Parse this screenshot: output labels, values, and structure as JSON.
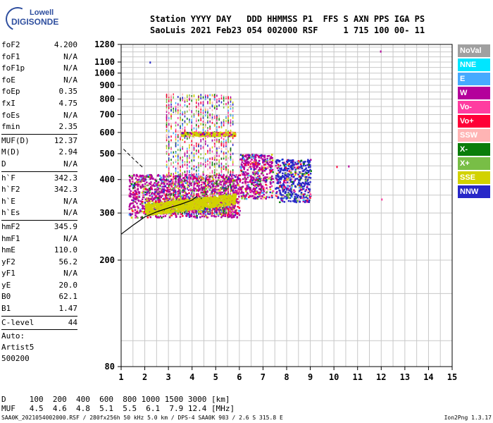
{
  "logo": {
    "brand_top": "Lowell",
    "brand_bottom": "DIGISONDE"
  },
  "header": {
    "line1": "Station YYYY DAY   DDD HHMMSS P1  FFS S AXN PPS IGA PS",
    "line2": "SaoLuis 2021 Feb23 054 002000 RSF     1 715 100 00- 11"
  },
  "params": [
    {
      "label": "foF2",
      "value": "4.200"
    },
    {
      "label": "foF1",
      "value": "N/A"
    },
    {
      "label": "foF1p",
      "value": "N/A"
    },
    {
      "label": "foE",
      "value": "N/A"
    },
    {
      "label": "foEp",
      "value": "0.35"
    },
    {
      "label": "fxI",
      "value": "4.75"
    },
    {
      "label": "foEs",
      "value": "N/A"
    },
    {
      "label": "fmin",
      "value": "2.35"
    },
    {
      "label": "MUF(D)",
      "value": "12.37"
    },
    {
      "label": "M(D)",
      "value": "2.94"
    },
    {
      "label": "D",
      "value": "N/A"
    },
    {
      "label": "h`F",
      "value": "342.3"
    },
    {
      "label": "h`F2",
      "value": "342.3"
    },
    {
      "label": "h`E",
      "value": "N/A"
    },
    {
      "label": "h`Es",
      "value": "N/A"
    },
    {
      "label": "hmF2",
      "value": "345.9"
    },
    {
      "label": "hmF1",
      "value": "N/A"
    },
    {
      "label": "hmE",
      "value": "110.0"
    },
    {
      "label": "yF2",
      "value": "56.2"
    },
    {
      "label": "yF1",
      "value": "N/A"
    },
    {
      "label": "yE",
      "value": "20.0"
    },
    {
      "label": "B0",
      "value": "62.1"
    },
    {
      "label": "B1",
      "value": "1.47"
    },
    {
      "label": "C-level",
      "value": "44"
    }
  ],
  "auto": {
    "line1": "Auto:",
    "line2": "Artist5",
    "line3": "500200"
  },
  "legend": [
    {
      "label": "NoVal",
      "color": "#a0a0a0"
    },
    {
      "label": "NNE",
      "color": "#00e6ff"
    },
    {
      "label": "E",
      "color": "#46aaff"
    },
    {
      "label": "W",
      "color": "#b4009b"
    },
    {
      "label": "Vo-",
      "color": "#ff3ca0"
    },
    {
      "label": "Vo+",
      "color": "#ff0037"
    },
    {
      "label": "SSW",
      "color": "#ffb4b4"
    },
    {
      "label": "X-",
      "color": "#0a7d0a"
    },
    {
      "label": "X+",
      "color": "#78be46"
    },
    {
      "label": "SSE",
      "color": "#d2d200"
    },
    {
      "label": "NNW",
      "color": "#2828c8"
    }
  ],
  "muf_table": {
    "d_label": "D",
    "d_values": [
      "100",
      "200",
      "400",
      "600",
      "800",
      "1000",
      "1500",
      "3000"
    ],
    "d_unit": "[km]",
    "muf_label": "MUF",
    "muf_values": [
      "4.5",
      "4.6",
      "4.8",
      "5.1",
      "5.5",
      "6.1",
      "7.9",
      "12.4"
    ],
    "muf_unit": "[MHz]"
  },
  "footer": {
    "info": "SAA0K_2021054002000.RSF / 280fx256h 50 kHz 5.0 km / DPS-4 SAA0K 903 / 2.6 S 315.8 E",
    "version": "Ion2Png 1.3.17"
  },
  "chart_data": {
    "type": "scatter",
    "title": "",
    "xlabel": "",
    "ylabel": "",
    "xlim": [
      1,
      15
    ],
    "ylim": [
      80,
      1280
    ],
    "y_scale": "log",
    "grid": true,
    "legend_placement": "right",
    "x_ticks": [
      1,
      2,
      3,
      4,
      5,
      6,
      7,
      8,
      9,
      10,
      11,
      12,
      13,
      14,
      15
    ],
    "y_ticks": [
      80,
      200,
      300,
      400,
      500,
      600,
      700,
      800,
      900,
      1000,
      1100,
      1280
    ],
    "echo_regions": [
      {
        "name": "F2 O-trace",
        "color": "#d2d200",
        "fmin": 2.0,
        "fmax": 5.8,
        "h_low": 305,
        "h_high": 345
      },
      {
        "name": "F2 spread",
        "color": "#b4009b",
        "fmin": 1.3,
        "fmax": 6.0,
        "h_low": 290,
        "h_high": 420
      },
      {
        "name": "spread-F echoes",
        "color": "#ff0037",
        "fmin": 2.9,
        "fmax": 5.8,
        "h_low": 300,
        "h_high": 840
      },
      {
        "name": "second hop trace",
        "color": "#d2d200",
        "fmin": 3.5,
        "fmax": 5.8,
        "h_low": 585,
        "h_high": 605
      },
      {
        "name": "oblique echoes 6-7",
        "color": "#b4009b",
        "fmin": 6.0,
        "fmax": 7.4,
        "h_low": 340,
        "h_high": 500
      },
      {
        "name": "oblique echoes 8",
        "color": "#2828c8",
        "fmin": 7.5,
        "fmax": 9.0,
        "h_low": 330,
        "h_high": 480
      }
    ],
    "isolated_points": [
      {
        "f": 2.2,
        "h": 1105,
        "color": "#2828c8"
      },
      {
        "f": 11.95,
        "h": 1215,
        "color": "#b4009b"
      },
      {
        "f": 10.6,
        "h": 452,
        "color": "#b4009b"
      },
      {
        "f": 10.1,
        "h": 450,
        "color": "#ff0037"
      },
      {
        "f": 12.0,
        "h": 340,
        "color": "#ff3ca0"
      }
    ],
    "profile_curve": {
      "f": [
        1.0,
        1.5,
        2.0,
        2.5,
        3.0,
        3.5,
        4.0,
        4.2
      ],
      "h": [
        250,
        270,
        290,
        303,
        313,
        323,
        335,
        346
      ]
    },
    "profile_dashed": {
      "f": [
        1.1,
        1.5,
        1.9
      ],
      "h": [
        520,
        480,
        445
      ]
    }
  }
}
